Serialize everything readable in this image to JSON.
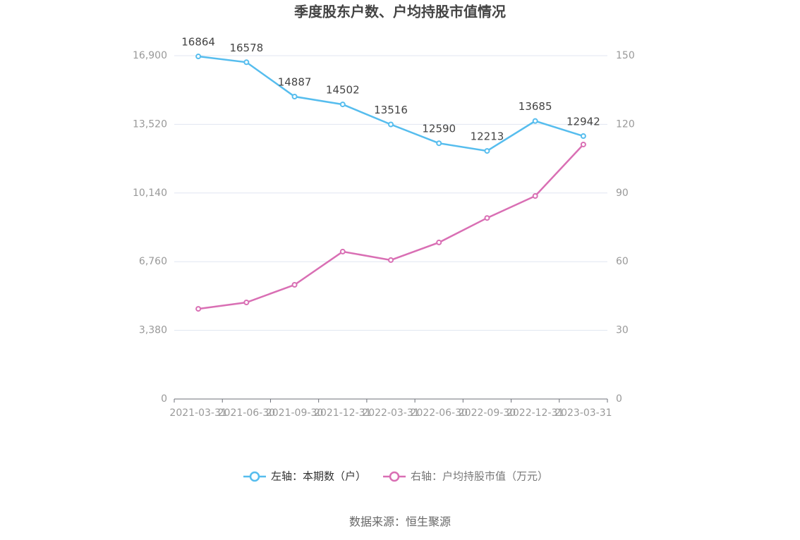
{
  "chart_data": {
    "type": "line",
    "title": "季度股东户数、户均持股市值情况",
    "categories": [
      "2021-03-31",
      "2021-06-30",
      "2021-09-30",
      "2021-12-31",
      "2022-03-31",
      "2022-06-30",
      "2022-09-30",
      "2022-12-31",
      "2023-03-31"
    ],
    "series": [
      {
        "name": "左轴：本期数（户）",
        "color": "#56bdee",
        "values": [
          16864,
          16578,
          14887,
          14502,
          13516,
          12590,
          12213,
          13685,
          12942
        ]
      },
      {
        "name": "右轴：户均持股市值（万元）",
        "color": "#d96fb4",
        "axis": "y2",
        "values": [
          39.4,
          42.2,
          49.9,
          64.4,
          60.7,
          68.4,
          79.1,
          88.7,
          111.2
        ]
      }
    ],
    "ylim": [
      0,
      16900
    ],
    "yticks": [
      0,
      {
        "value": 3380,
        "label": "3,380"
      },
      {
        "value": 6760,
        "label": "6,760"
      },
      {
        "value": 10140,
        "label": "10,140"
      },
      {
        "value": 13520,
        "label": "13,520"
      },
      {
        "value": 16900,
        "label": "16,900"
      }
    ],
    "y2lim": [
      0,
      150
    ],
    "y2ticks": [
      0,
      30,
      60,
      90,
      120,
      150
    ],
    "grid": true,
    "legend": "bottom",
    "source": "数据来源：恒生聚源"
  }
}
